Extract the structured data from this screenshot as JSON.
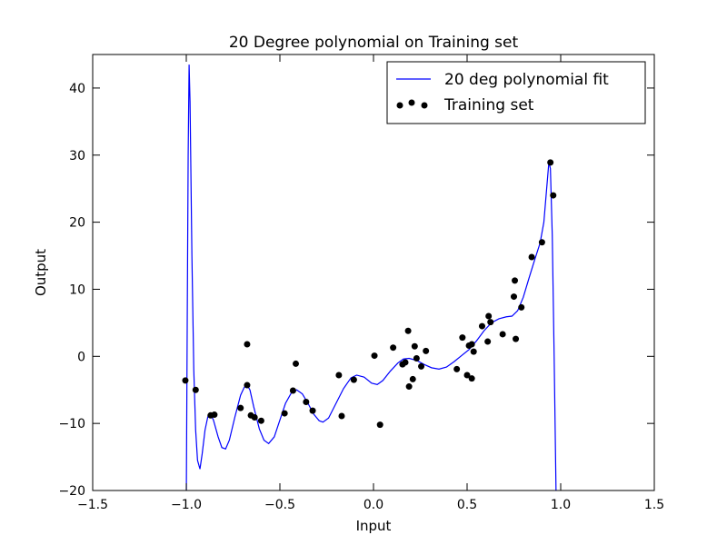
{
  "chart_data": {
    "type": "line",
    "title": "20 Degree polynomial on Training set",
    "x_label": "Input",
    "y_label": "Output",
    "xlim": [
      -1.5,
      1.5
    ],
    "ylim": [
      -20,
      45
    ],
    "xticks": [
      {
        "value": -1.5,
        "label": "−1.5"
      },
      {
        "value": -1.0,
        "label": "−1.0"
      },
      {
        "value": -0.5,
        "label": "−0.5"
      },
      {
        "value": 0.0,
        "label": "0.0"
      },
      {
        "value": 0.5,
        "label": "0.5"
      },
      {
        "value": 1.0,
        "label": "1.0"
      },
      {
        "value": 1.5,
        "label": "1.5"
      }
    ],
    "yticks": [
      {
        "value": -20,
        "label": "−20"
      },
      {
        "value": -10,
        "label": "−10"
      },
      0,
      10,
      20,
      30,
      40
    ],
    "legend": "upper right",
    "series": [
      {
        "name": "20 deg polynomial fit",
        "type": "line",
        "color": "#0000ff",
        "x": [
          -1.0,
          -0.995,
          -0.99,
          -0.985,
          -0.98,
          -0.97,
          -0.96,
          -0.95,
          -0.94,
          -0.927,
          -0.915,
          -0.9,
          -0.885,
          -0.87,
          -0.855,
          -0.83,
          -0.81,
          -0.79,
          -0.77,
          -0.74,
          -0.71,
          -0.69,
          -0.675,
          -0.66,
          -0.64,
          -0.61,
          -0.585,
          -0.56,
          -0.53,
          -0.5,
          -0.47,
          -0.44,
          -0.41,
          -0.38,
          -0.35,
          -0.32,
          -0.29,
          -0.27,
          -0.24,
          -0.2,
          -0.16,
          -0.12,
          -0.09,
          -0.05,
          -0.01,
          0.02,
          0.05,
          0.09,
          0.13,
          0.16,
          0.19,
          0.23,
          0.27,
          0.31,
          0.35,
          0.39,
          0.43,
          0.47,
          0.51,
          0.55,
          0.59,
          0.63,
          0.67,
          0.71,
          0.74,
          0.77,
          0.8,
          0.83,
          0.86,
          0.89,
          0.91,
          0.925,
          0.937,
          0.945,
          0.955,
          0.965,
          0.975,
          0.98
        ],
        "values": [
          -22,
          5,
          30,
          43.5,
          38,
          15,
          -2,
          -11,
          -15.5,
          -16.8,
          -14.5,
          -11,
          -9,
          -8.6,
          -9.5,
          -12,
          -13.6,
          -13.8,
          -12.5,
          -9,
          -5.8,
          -4.6,
          -4.3,
          -5,
          -7.5,
          -10.8,
          -12.5,
          -13,
          -12,
          -9.5,
          -7,
          -5.5,
          -5,
          -5.6,
          -7,
          -8.6,
          -9.6,
          -9.8,
          -9.2,
          -7,
          -4.8,
          -3.2,
          -2.8,
          -3.1,
          -4,
          -4.2,
          -3.6,
          -2.2,
          -1.0,
          -0.4,
          -0.3,
          -0.6,
          -1.2,
          -1.7,
          -1.9,
          -1.6,
          -0.8,
          0.1,
          1.0,
          2.3,
          3.8,
          5.0,
          5.6,
          5.9,
          6.0,
          6.8,
          8.8,
          11.6,
          14.3,
          16.9,
          20,
          25,
          29,
          28,
          18,
          0,
          -20,
          -30
        ]
      },
      {
        "name": "Training set",
        "type": "scatter",
        "color": "#000000",
        "x": [
          -1.005,
          -0.95,
          -0.87,
          -0.85,
          -0.675,
          -0.71,
          -0.675,
          -0.655,
          -0.635,
          -0.6,
          -0.475,
          -0.43,
          -0.415,
          -0.36,
          -0.325,
          -0.185,
          -0.17,
          -0.105,
          0.005,
          0.035,
          0.105,
          0.155,
          0.17,
          0.185,
          0.19,
          0.21,
          0.22,
          0.23,
          0.255,
          0.28,
          0.445,
          0.475,
          0.5,
          0.51,
          0.525,
          0.525,
          0.535,
          0.58,
          0.61,
          0.615,
          0.625,
          0.69,
          0.75,
          0.755,
          0.76,
          0.79,
          0.845,
          0.9,
          0.945,
          0.96
        ],
        "values": [
          -3.6,
          -5.0,
          -8.8,
          -8.7,
          1.8,
          -7.7,
          -4.3,
          -8.8,
          -9.1,
          -9.6,
          -8.5,
          -5.1,
          -1.1,
          -6.8,
          -8.1,
          -2.8,
          -8.9,
          -3.5,
          0.1,
          -10.2,
          1.3,
          -1.2,
          -0.9,
          3.8,
          -4.5,
          -3.4,
          1.5,
          -0.3,
          -1.5,
          0.8,
          -1.9,
          2.8,
          -2.8,
          1.6,
          1.8,
          -3.3,
          0.7,
          4.5,
          2.2,
          6.0,
          5.1,
          3.3,
          8.9,
          11.3,
          2.6,
          7.3,
          14.8,
          17.0,
          28.9,
          24.0
        ]
      }
    ]
  }
}
